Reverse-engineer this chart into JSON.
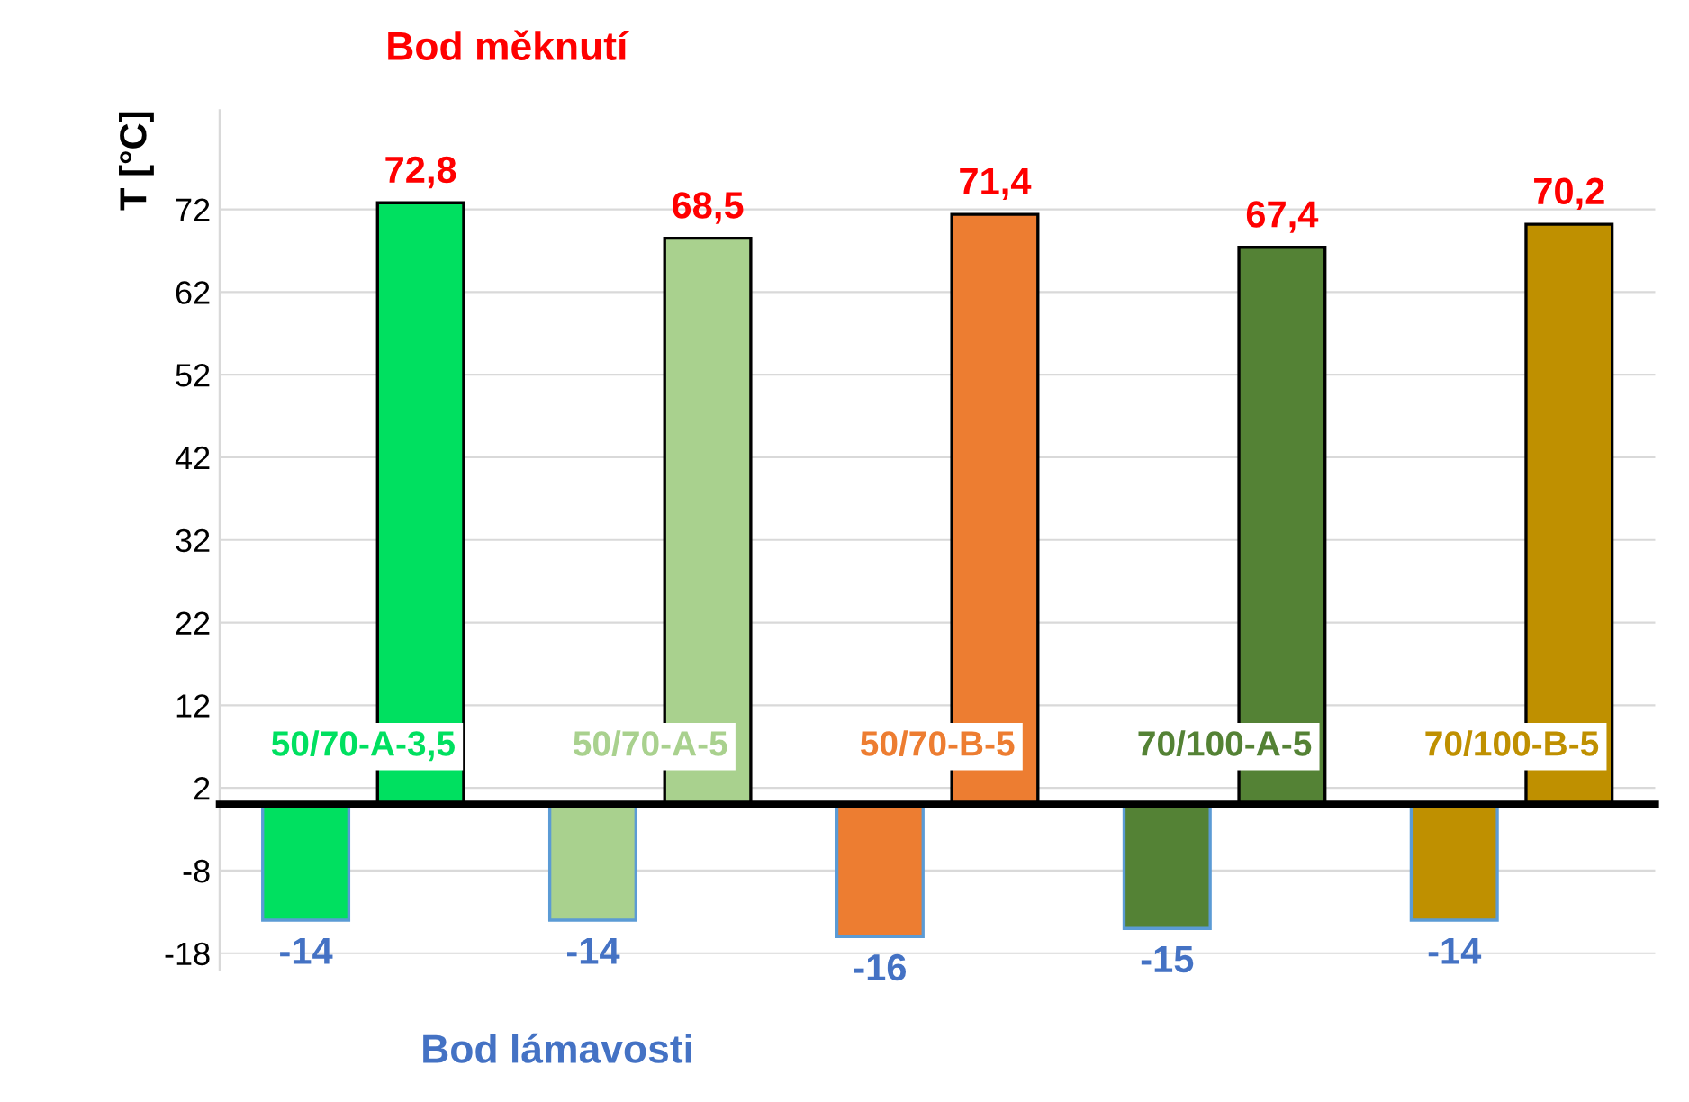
{
  "chart_data": {
    "type": "bar",
    "categories": [
      "50/70-A-3,5",
      "50/70-A-5",
      "50/70-B-5",
      "70/100-A-5",
      "70/100-B-5"
    ],
    "series": [
      {
        "colors": [
          "#00e060",
          "#a9d18e",
          "#ed7d31",
          "#548235",
          "#bf9000"
        ],
        "values": [
          -14,
          -14,
          -16,
          -15,
          -14
        ],
        "value_labels": [
          "-14",
          "-14",
          "-16",
          "-15",
          "-14"
        ]
      },
      {
        "colors": [
          "#00e060",
          "#a9d18e",
          "#ed7d31",
          "#548235",
          "#bf9000"
        ],
        "values": [
          72.8,
          68.5,
          71.4,
          67.4,
          70.2
        ],
        "value_labels": [
          "72,8",
          "68,5",
          "71,4",
          "67,4",
          "70,2"
        ]
      }
    ],
    "ylabel": "T [°C]",
    "annotations": [
      "Bod měknutí",
      "Bod lámavosti"
    ],
    "ylim": [
      -20,
      84
    ],
    "yticks": [
      -18,
      -8,
      2,
      12,
      22,
      32,
      42,
      52,
      62,
      72
    ],
    "grid": "y",
    "legend": false
  }
}
